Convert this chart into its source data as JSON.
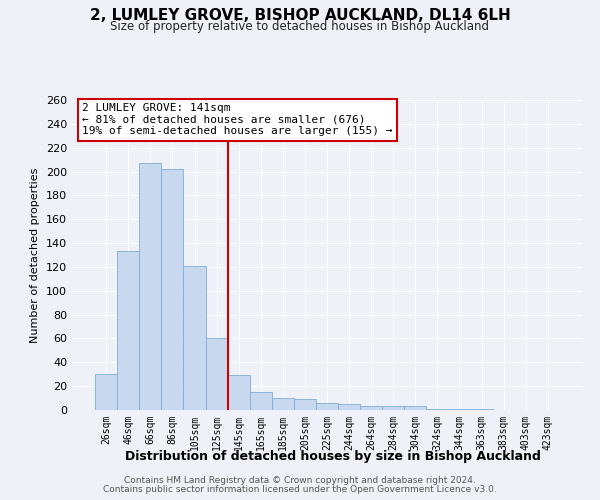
{
  "title": "2, LUMLEY GROVE, BISHOP AUCKLAND, DL14 6LH",
  "subtitle": "Size of property relative to detached houses in Bishop Auckland",
  "xlabel": "Distribution of detached houses by size in Bishop Auckland",
  "ylabel": "Number of detached properties",
  "bar_labels": [
    "26sqm",
    "46sqm",
    "66sqm",
    "86sqm",
    "105sqm",
    "125sqm",
    "145sqm",
    "165sqm",
    "185sqm",
    "205sqm",
    "225sqm",
    "244sqm",
    "264sqm",
    "284sqm",
    "304sqm",
    "324sqm",
    "344sqm",
    "363sqm",
    "383sqm",
    "403sqm",
    "423sqm"
  ],
  "bar_values": [
    30,
    133,
    207,
    202,
    121,
    60,
    29,
    15,
    10,
    9,
    6,
    5,
    3,
    3,
    3,
    1,
    1,
    1,
    0,
    0,
    0
  ],
  "bar_color": "#c8d8ee",
  "bar_edge_color": "#7fafd4",
  "vline_x": 6.0,
  "vline_color": "#cc0000",
  "annotation_title": "2 LUMLEY GROVE: 141sqm",
  "annotation_line1": "← 81% of detached houses are smaller (676)",
  "annotation_line2": "19% of semi-detached houses are larger (155) →",
  "annotation_box_color": "white",
  "annotation_box_edge": "#cc0000",
  "ylim": [
    0,
    260
  ],
  "yticks": [
    0,
    20,
    40,
    60,
    80,
    100,
    120,
    140,
    160,
    180,
    200,
    220,
    240,
    260
  ],
  "footer1": "Contains HM Land Registry data © Crown copyright and database right 2024.",
  "footer2": "Contains public sector information licensed under the Open Government Licence v3.0.",
  "bg_color": "#eef2f8",
  "plot_bg_color": "#eef2f8",
  "grid_color": "#ffffff"
}
